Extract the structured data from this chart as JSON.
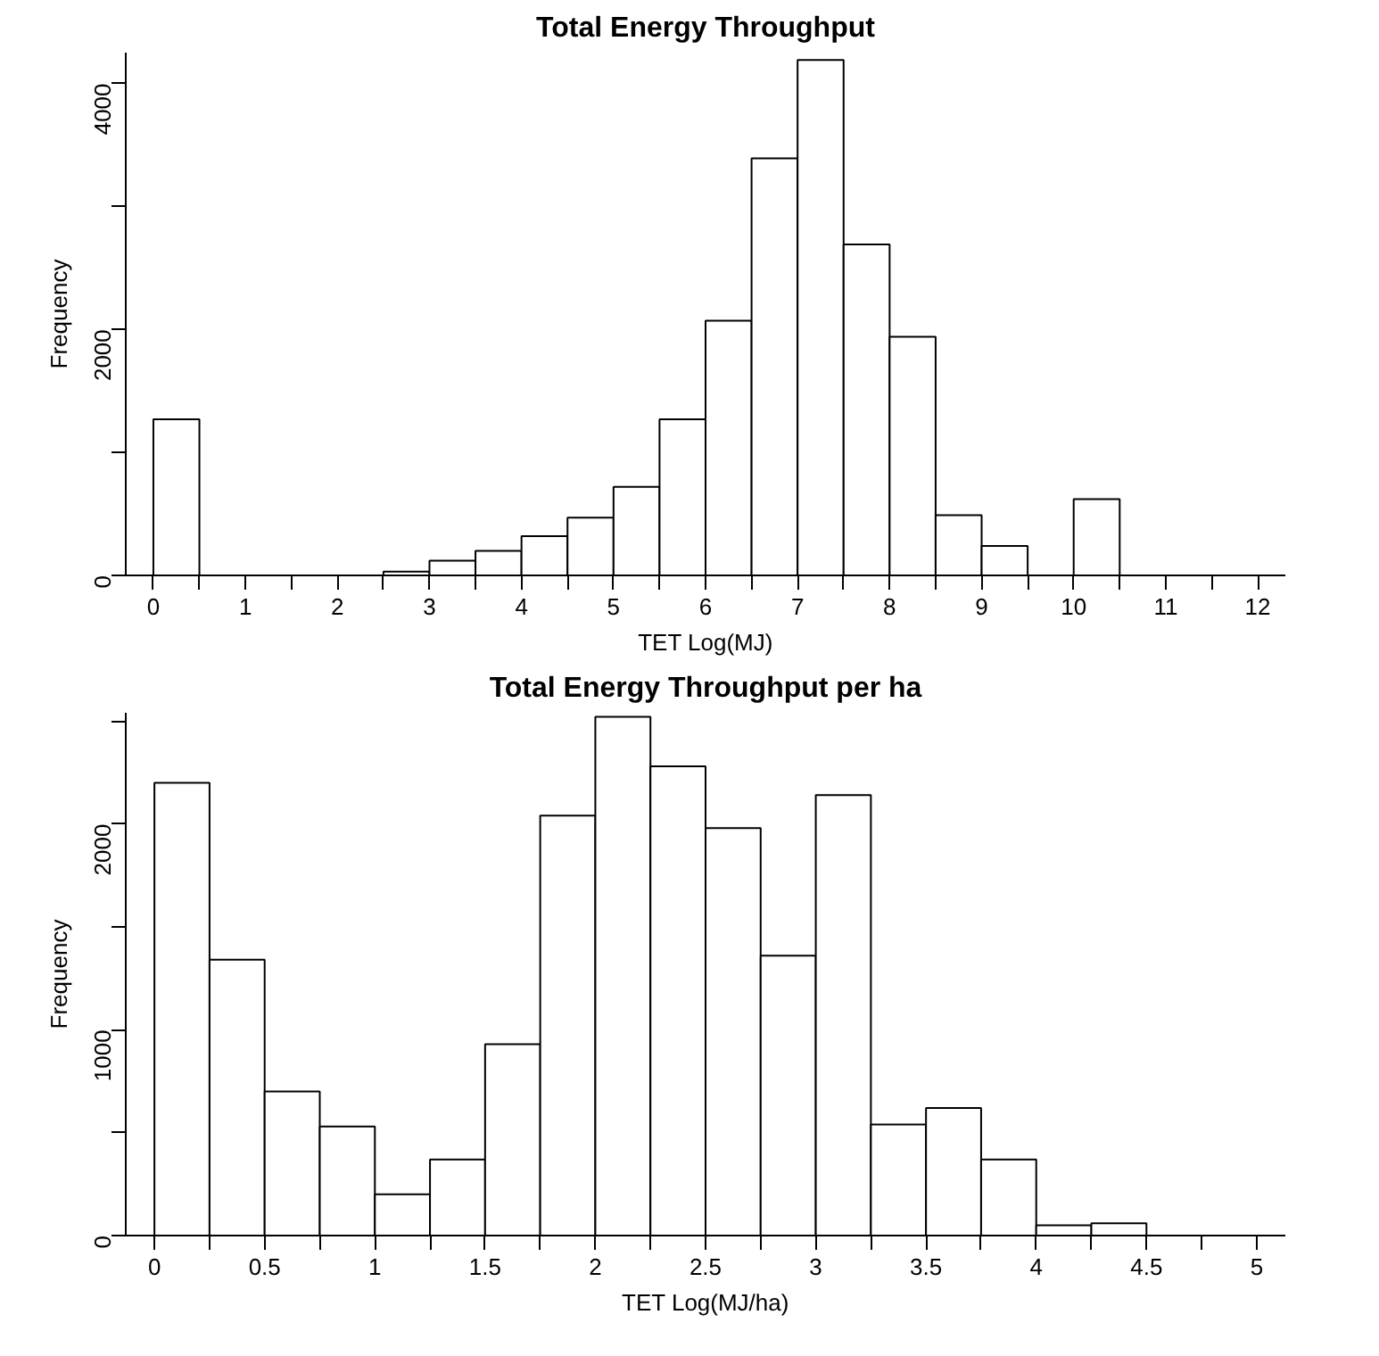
{
  "chart_data": [
    {
      "type": "histogram",
      "title": "Total Energy Throughput",
      "xlabel": "TET Log(MJ)",
      "ylabel": "Frequency",
      "bins": [
        0,
        0.5,
        1,
        1.5,
        2,
        2.5,
        3,
        3.5,
        4,
        4.5,
        5,
        5.5,
        6,
        6.5,
        7,
        7.5,
        8,
        8.5,
        9,
        9.5,
        10,
        10.5,
        11,
        11.5,
        12
      ],
      "values": [
        1270,
        0,
        0,
        0,
        0,
        30,
        120,
        200,
        320,
        470,
        720,
        1270,
        2070,
        3390,
        4190,
        2690,
        1940,
        490,
        240,
        0,
        620,
        0,
        0,
        0
      ],
      "color": "#ffffff",
      "xlim": [
        -0.3,
        12.3
      ],
      "ylim": [
        0,
        4250
      ],
      "xticks": [
        0,
        {
          "value": 0.5,
          "label": null
        },
        1,
        {
          "value": 1.5,
          "label": null
        },
        2,
        {
          "value": 2.5,
          "label": null
        },
        3,
        {
          "value": 3.5,
          "label": null
        },
        4,
        {
          "value": 4.5,
          "label": null
        },
        5,
        {
          "value": 5.5,
          "label": null
        },
        6,
        {
          "value": 6.5,
          "label": null
        },
        7,
        {
          "value": 7.5,
          "label": null
        },
        8,
        {
          "value": 8.5,
          "label": null
        },
        9,
        {
          "value": 9.5,
          "label": null
        },
        10,
        {
          "value": 10.5,
          "label": null
        },
        11,
        {
          "value": 11.5,
          "label": null
        },
        12
      ],
      "yticks": [
        0,
        {
          "value": 1000,
          "label": null
        },
        2000,
        {
          "value": 3000,
          "label": null
        },
        4000
      ],
      "grid": false
    },
    {
      "type": "histogram",
      "title": "Total Energy Throughput per ha",
      "xlabel": "TET Log(MJ/ha)",
      "ylabel": "Frequency",
      "bins": [
        0,
        0.25,
        0.5,
        0.75,
        1,
        1.25,
        1.5,
        1.75,
        2,
        2.25,
        2.5,
        2.75,
        3,
        3.25,
        3.5,
        3.75,
        4,
        4.25,
        4.5,
        4.75,
        5
      ],
      "values": [
        2200,
        1340,
        700,
        530,
        200,
        370,
        930,
        2040,
        2520,
        2280,
        1980,
        1360,
        2140,
        540,
        620,
        370,
        50,
        60,
        0,
        0
      ],
      "color": "#ffffff",
      "xlim": [
        -0.13,
        5.13
      ],
      "ylim": [
        0,
        2540
      ],
      "xticks": [
        0,
        {
          "value": 0.25,
          "label": null
        },
        0.5,
        {
          "value": 0.75,
          "label": null
        },
        1,
        {
          "value": 1.25,
          "label": null
        },
        1.5,
        {
          "value": 1.75,
          "label": null
        },
        2,
        {
          "value": 2.25,
          "label": null
        },
        2.5,
        {
          "value": 2.75,
          "label": null
        },
        3,
        {
          "value": 3.25,
          "label": null
        },
        3.5,
        {
          "value": 3.75,
          "label": null
        },
        4,
        {
          "value": 4.25,
          "label": null
        },
        4.5,
        {
          "value": 4.75,
          "label": null
        },
        5
      ],
      "yticks": [
        0,
        {
          "value": 500,
          "label": null
        },
        1000,
        {
          "value": 1500,
          "label": null
        },
        2000,
        {
          "value": 2500,
          "label": null
        }
      ],
      "grid": false
    }
  ]
}
